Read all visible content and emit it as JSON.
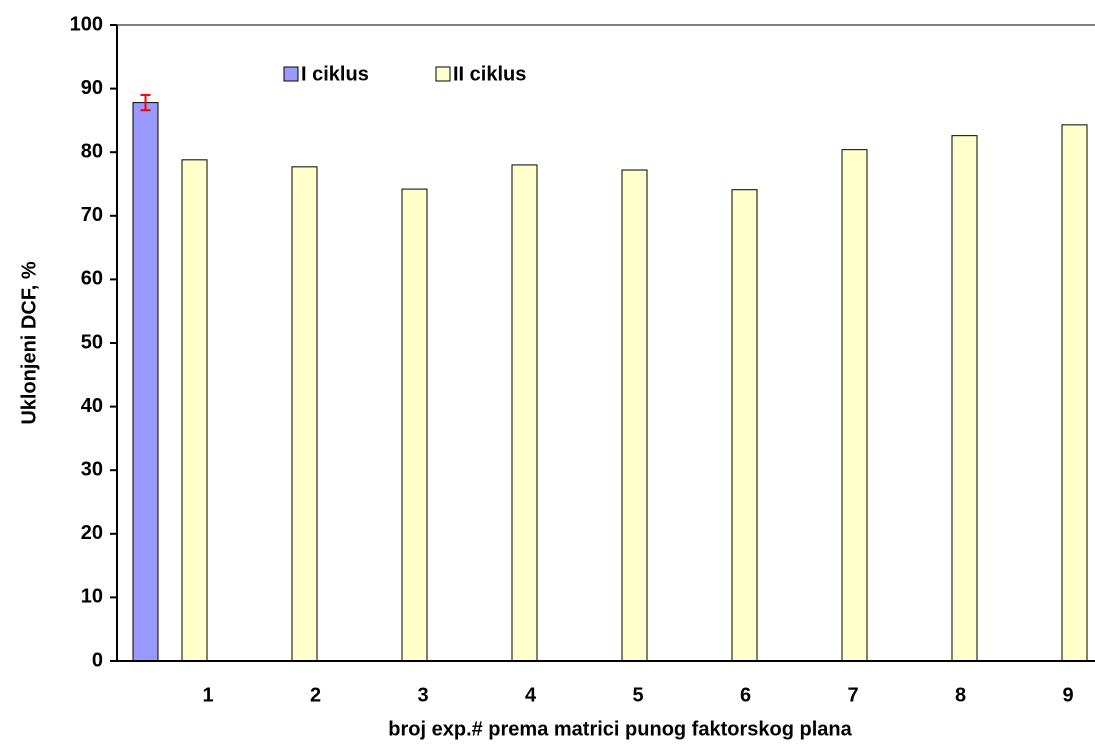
{
  "chart_data": {
    "type": "bar",
    "x_label": "broj exp.# prema matrici punog faktorskog plana",
    "y_label": "Uklonjeni DCF, %",
    "categories": [
      "1",
      "2",
      "3",
      "4",
      "5",
      "6",
      "7",
      "8",
      "9"
    ],
    "series": [
      {
        "name": "I ciklus",
        "color": "#9999ff",
        "values": [
          87.8,
          null,
          null,
          null,
          null,
          null,
          null,
          null,
          null
        ],
        "errors": [
          1.2,
          null,
          null,
          null,
          null,
          null,
          null,
          null,
          null
        ],
        "error_color": "#ff0000"
      },
      {
        "name": "II ciklus",
        "color": "#ffffcc",
        "values": [
          78.8,
          77.7,
          74.2,
          78.0,
          77.2,
          74.1,
          80.4,
          82.6,
          84.3
        ]
      }
    ],
    "ylim": [
      0,
      100
    ],
    "yticks": [
      0,
      10,
      20,
      30,
      40,
      50,
      60,
      70,
      80,
      90,
      100
    ],
    "grid": false
  }
}
